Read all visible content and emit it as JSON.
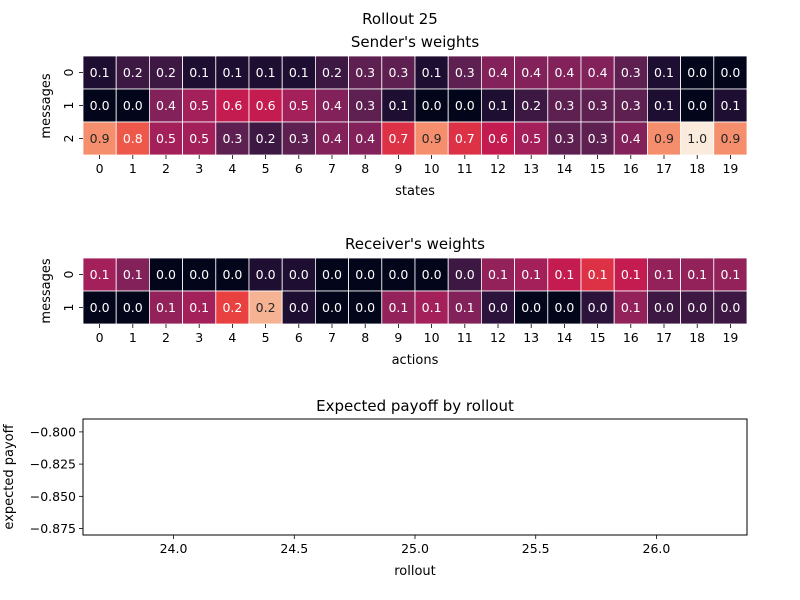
{
  "figure": {
    "title": "Rollout 25"
  },
  "chart_data": [
    {
      "type": "heatmap",
      "title": "Sender's weights",
      "xlabel": "states",
      "ylabel": "messages",
      "x_ticks": [
        "0",
        "1",
        "2",
        "3",
        "4",
        "5",
        "6",
        "7",
        "8",
        "9",
        "10",
        "11",
        "12",
        "13",
        "14",
        "15",
        "16",
        "17",
        "18",
        "19"
      ],
      "y_ticks": [
        "0",
        "1",
        "2"
      ],
      "color_range": [
        0,
        1
      ],
      "values": [
        [
          0.1,
          0.2,
          0.2,
          0.1,
          0.1,
          0.1,
          0.1,
          0.2,
          0.3,
          0.3,
          0.1,
          0.3,
          0.4,
          0.4,
          0.4,
          0.4,
          0.3,
          0.1,
          0.0,
          0.0
        ],
        [
          0.0,
          0.0,
          0.4,
          0.5,
          0.6,
          0.6,
          0.5,
          0.4,
          0.3,
          0.1,
          0.0,
          0.0,
          0.1,
          0.2,
          0.3,
          0.3,
          0.3,
          0.1,
          0.0,
          0.1
        ],
        [
          0.9,
          0.8,
          0.5,
          0.5,
          0.3,
          0.2,
          0.3,
          0.4,
          0.4,
          0.7,
          0.9,
          0.7,
          0.6,
          0.5,
          0.3,
          0.3,
          0.4,
          0.9,
          1.0,
          0.9
        ]
      ]
    },
    {
      "type": "heatmap",
      "title": "Receiver's weights",
      "xlabel": "actions",
      "ylabel": "messages",
      "x_ticks": [
        "0",
        "1",
        "2",
        "3",
        "4",
        "5",
        "6",
        "7",
        "8",
        "9",
        "10",
        "11",
        "12",
        "13",
        "14",
        "15",
        "16",
        "17",
        "18",
        "19"
      ],
      "y_ticks": [
        "0",
        "1"
      ],
      "color_range": [
        0,
        0.2
      ],
      "values": [
        [
          0.1,
          0.1,
          0.0,
          0.0,
          0.0,
          0.0,
          0.0,
          0.0,
          0.0,
          0.0,
          0.0,
          0.0,
          0.1,
          0.1,
          0.1,
          0.1,
          0.1,
          0.1,
          0.1,
          0.1
        ],
        [
          0.0,
          0.0,
          0.1,
          0.1,
          0.2,
          0.2,
          0.0,
          0.0,
          0.0,
          0.1,
          0.1,
          0.1,
          0.0,
          0.0,
          0.0,
          0.0,
          0.1,
          0.0,
          0.0,
          0.0
        ]
      ],
      "shade": [
        [
          0.1,
          0.08,
          0.0,
          0.0,
          0.0,
          0.02,
          0.02,
          0.0,
          0.0,
          0.0,
          0.0,
          0.04,
          0.09,
          0.1,
          0.12,
          0.14,
          0.12,
          0.09,
          0.09,
          0.09
        ],
        [
          0.0,
          0.0,
          0.09,
          0.1,
          0.15,
          0.19,
          0.02,
          0.0,
          0.0,
          0.09,
          0.1,
          0.08,
          0.03,
          0.0,
          0.0,
          0.03,
          0.09,
          0.04,
          0.04,
          0.04
        ]
      ]
    },
    {
      "type": "line",
      "title": "Expected payoff by rollout",
      "xlabel": "rollout",
      "ylabel": "expected payoff",
      "xlim": [
        23.625,
        26.375
      ],
      "ylim": [
        -0.88,
        -0.79
      ],
      "x_ticks": [
        24.0,
        24.5,
        25.0,
        25.5,
        26.0
      ],
      "x_tick_labels": [
        "24.0",
        "24.5",
        "25.0",
        "25.5",
        "26.0"
      ],
      "y_ticks": [
        -0.8,
        -0.825,
        -0.85,
        -0.875
      ],
      "y_tick_labels": [
        "−0.800",
        "−0.825",
        "−0.850",
        "−0.875"
      ],
      "series": [
        {
          "x": [],
          "y": []
        }
      ]
    }
  ]
}
